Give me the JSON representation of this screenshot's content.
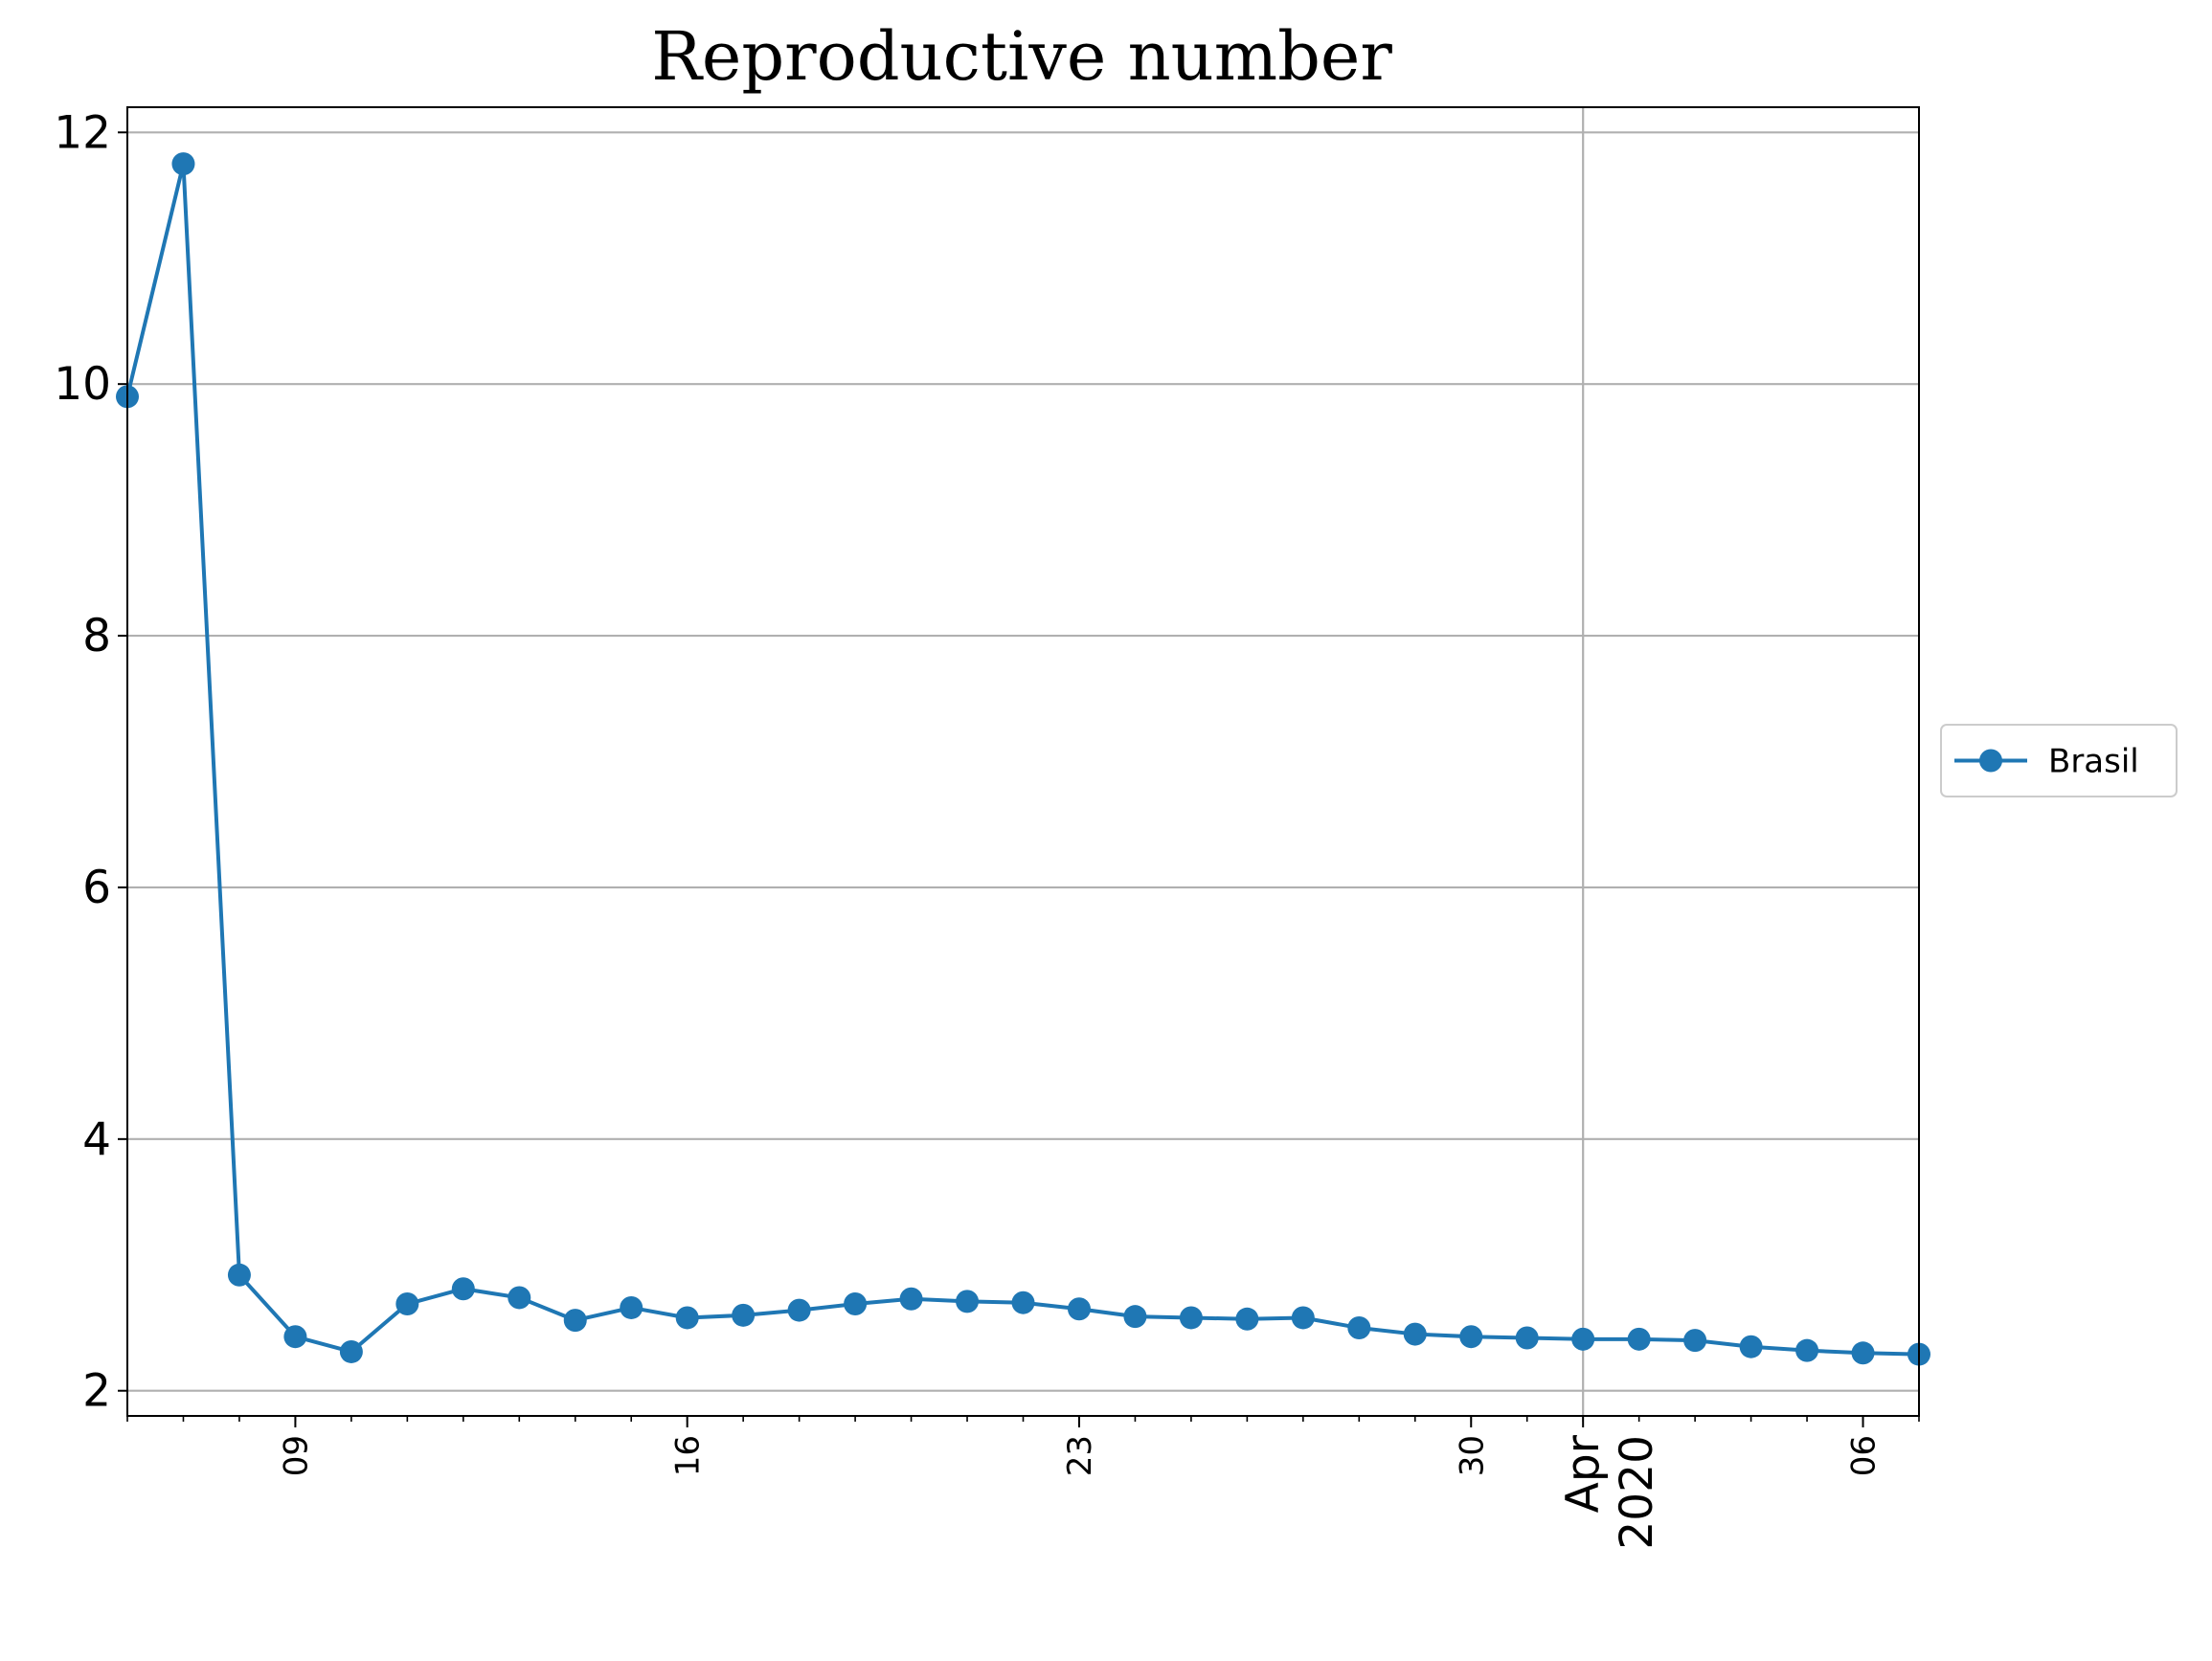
{
  "chart_data": {
    "type": "line",
    "title": "Reproductive number",
    "xlabel": "",
    "ylabel": "",
    "x_start": "2020-03-06",
    "x_end": "2020-04-07",
    "xlim": [
      "2020-03-06",
      "2020-04-07"
    ],
    "ylim": [
      1.8,
      12.2
    ],
    "yticks": [
      2,
      4,
      6,
      8,
      10,
      12
    ],
    "xticks_major": [
      {
        "date": "2020-03-09",
        "label": "09"
      },
      {
        "date": "2020-03-16",
        "label": "16"
      },
      {
        "date": "2020-03-23",
        "label": "23"
      },
      {
        "date": "2020-03-30",
        "label": "30"
      },
      {
        "date": "2020-04-06",
        "label": "06"
      }
    ],
    "month_tick": {
      "date": "2020-04-01",
      "line1": "Apr",
      "line2": "2020"
    },
    "grid": true,
    "legend": {
      "position": "right-outside-center"
    },
    "series": [
      {
        "name": "Brasil",
        "color": "#1f77b4",
        "marker": "circle",
        "x": [
          "2020-03-06",
          "2020-03-07",
          "2020-03-08",
          "2020-03-09",
          "2020-03-10",
          "2020-03-11",
          "2020-03-12",
          "2020-03-13",
          "2020-03-14",
          "2020-03-15",
          "2020-03-16",
          "2020-03-17",
          "2020-03-18",
          "2020-03-19",
          "2020-03-20",
          "2020-03-21",
          "2020-03-22",
          "2020-03-23",
          "2020-03-24",
          "2020-03-25",
          "2020-03-26",
          "2020-03-27",
          "2020-03-28",
          "2020-03-29",
          "2020-03-30",
          "2020-03-31",
          "2020-04-01",
          "2020-04-02",
          "2020-04-03",
          "2020-04-04",
          "2020-04-05",
          "2020-04-06",
          "2020-04-07"
        ],
        "values": [
          9.9,
          11.75,
          2.92,
          2.43,
          2.31,
          2.69,
          2.81,
          2.74,
          2.56,
          2.66,
          2.58,
          2.6,
          2.64,
          2.69,
          2.73,
          2.71,
          2.7,
          2.65,
          2.59,
          2.58,
          2.57,
          2.58,
          2.5,
          2.45,
          2.43,
          2.42,
          2.41,
          2.41,
          2.4,
          2.35,
          2.32,
          2.3,
          2.29
        ]
      }
    ]
  }
}
